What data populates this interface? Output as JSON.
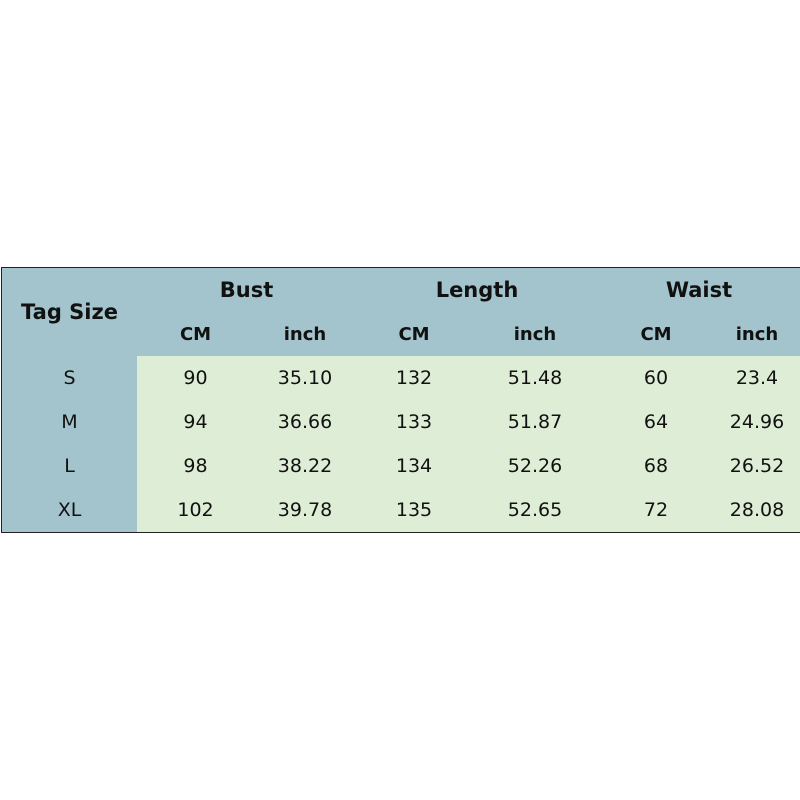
{
  "table": {
    "tag_header": "Tag Size",
    "groups": [
      "Bust",
      "Length",
      "Waist"
    ],
    "units": [
      "CM",
      "inch"
    ],
    "rows": [
      {
        "size": "S",
        "values": [
          "90",
          "35.10",
          "132",
          "51.48",
          "60",
          "23.4"
        ]
      },
      {
        "size": "M",
        "values": [
          "94",
          "36.66",
          "133",
          "51.87",
          "64",
          "24.96"
        ]
      },
      {
        "size": "L",
        "values": [
          "98",
          "38.22",
          "134",
          "52.26",
          "68",
          "26.52"
        ]
      },
      {
        "size": "XL",
        "values": [
          "102",
          "39.78",
          "135",
          "52.65",
          "72",
          "28.08"
        ]
      }
    ]
  },
  "colors": {
    "header": "#a3c4cc",
    "body": "#deedd5",
    "border": "#222222"
  }
}
